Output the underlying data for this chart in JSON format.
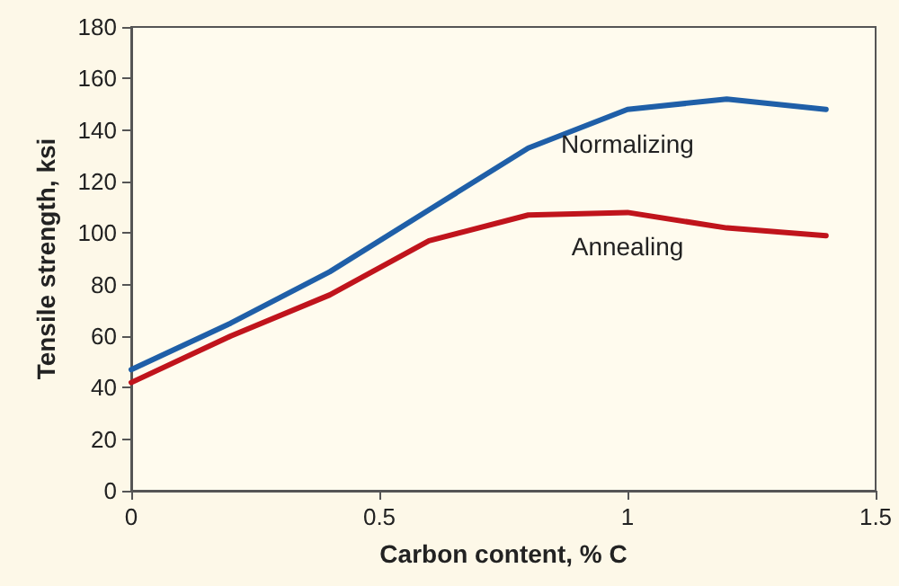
{
  "chart_data": {
    "type": "line",
    "xlabel": "Carbon content, % C",
    "ylabel": "Tensile strength, ksi",
    "x": [
      0,
      0.2,
      0.4,
      0.6,
      0.8,
      1.0,
      1.2,
      1.4
    ],
    "series": [
      {
        "name": "Normalizing",
        "color": "#1f5fa8",
        "values": [
          47,
          65,
          85,
          109,
          133,
          148,
          152,
          148
        ]
      },
      {
        "name": "Annealing",
        "color": "#c0141c",
        "values": [
          42,
          60,
          76,
          97,
          107,
          108,
          102,
          99
        ]
      }
    ],
    "xlim": [
      0,
      1.5
    ],
    "xticks": [
      0,
      0.5,
      1,
      1.5
    ],
    "ylim": [
      0,
      180
    ],
    "yticks": [
      0,
      20,
      40,
      60,
      80,
      100,
      120,
      140,
      160,
      180
    ],
    "grid": false,
    "legend": false,
    "marker": "none",
    "line_style": "solid"
  }
}
